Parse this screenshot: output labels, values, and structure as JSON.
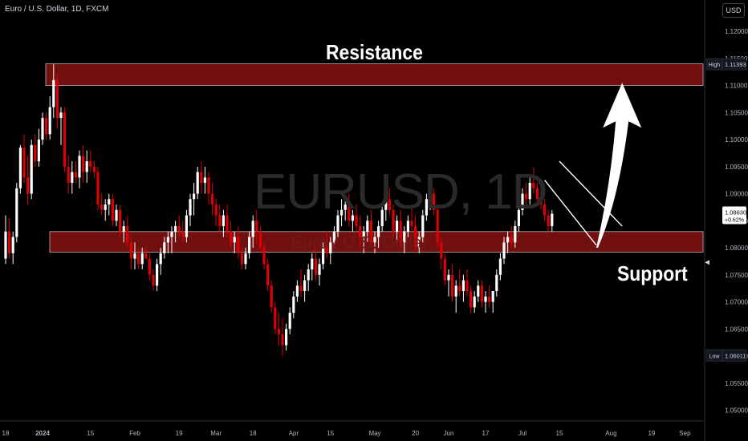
{
  "header": {
    "title": "Euro / U.S. Dollar, 1D, FXCM",
    "currency": "USD"
  },
  "watermark": {
    "symbol": "EURUSD, 1D",
    "name": "Euro / U.S. Dollar"
  },
  "annotations": {
    "resistance": "Resistance",
    "support": "Support"
  },
  "colors": {
    "up": "#ffffff",
    "down": "#e00000",
    "zone": "#8b1414",
    "background": "#000000"
  },
  "chart_data": {
    "type": "candlestick",
    "symbol": "EURUSD",
    "interval": "1D",
    "ylim": [
      1.048,
      1.1258
    ],
    "y_ticks": [
      "1.12000",
      "1.11500",
      "1.11000",
      "1.10500",
      "1.10000",
      "1.09500",
      "1.09000",
      "1.08500",
      "1.08000",
      "1.07500",
      "1.07000",
      "1.06500",
      "1.06000",
      "1.05500",
      "1.05000"
    ],
    "x_ticks": [
      {
        "label": "18",
        "at": 0
      },
      {
        "label": "2024",
        "at": 10
      },
      {
        "label": "15",
        "at": 23
      },
      {
        "label": "Feb",
        "at": 35
      },
      {
        "label": "19",
        "at": 47
      },
      {
        "label": "Mar",
        "at": 57
      },
      {
        "label": "18",
        "at": 67
      },
      {
        "label": "Apr",
        "at": 78
      },
      {
        "label": "15",
        "at": 88
      },
      {
        "label": "May",
        "at": 100
      },
      {
        "label": "20",
        "at": 111
      },
      {
        "label": "Jun",
        "at": 120
      },
      {
        "label": "17",
        "at": 130
      },
      {
        "label": "Jul",
        "at": 140
      },
      {
        "label": "15",
        "at": 150
      },
      {
        "label": "Aug",
        "at": 164
      },
      {
        "label": "19",
        "at": 175
      },
      {
        "label": "Sep",
        "at": 184
      }
    ],
    "price_labels": [
      {
        "tag": "High",
        "value": 1.11393,
        "text": "1.11393",
        "color": "#131722"
      },
      {
        "tag": "",
        "value": 1.0863,
        "text": "1.08630",
        "sub": "+0.62%",
        "color": "#ffffff"
      },
      {
        "tag": "Low",
        "value": 1.06011,
        "text": "1.06011",
        "color": "#131722"
      }
    ],
    "zones": [
      {
        "name": "resistance",
        "from": 1.11,
        "to": 1.114,
        "start": 10,
        "end": 183
      },
      {
        "name": "support",
        "from": 1.0792,
        "to": 1.083,
        "start": 12,
        "end": 183
      }
    ],
    "arrow": {
      "from_index": 160,
      "from_value": 1.08,
      "to_index": 167,
      "to_value": 1.1105
    },
    "channel": {
      "upper": [
        {
          "i": 150,
          "v": 1.096
        },
        {
          "i": 167,
          "v": 1.084
        }
      ],
      "lower": [
        {
          "i": 146,
          "v": 1.0925
        },
        {
          "i": 160,
          "v": 1.0805
        }
      ]
    },
    "candles": [
      [
        1.078,
        1.086,
        1.077,
        1.083
      ],
      [
        1.083,
        1.0855,
        1.078,
        1.079
      ],
      [
        1.079,
        1.083,
        1.077,
        1.082
      ],
      [
        1.082,
        1.092,
        1.081,
        1.091
      ],
      [
        1.091,
        1.099,
        1.09,
        1.0985
      ],
      [
        1.0985,
        1.101,
        1.092,
        1.093
      ],
      [
        1.093,
        1.097,
        1.088,
        1.09
      ],
      [
        1.09,
        1.1,
        1.089,
        1.099
      ],
      [
        1.099,
        1.101,
        1.095,
        1.096
      ],
      [
        1.096,
        1.102,
        1.095,
        1.1
      ],
      [
        1.1,
        1.105,
        1.099,
        1.104
      ],
      [
        1.104,
        1.105,
        1.1,
        1.101
      ],
      [
        1.101,
        1.108,
        1.1,
        1.106
      ],
      [
        1.106,
        1.1139,
        1.104,
        1.111
      ],
      [
        1.111,
        1.112,
        1.102,
        1.104
      ],
      [
        1.104,
        1.106,
        1.099,
        1.105
      ],
      [
        1.105,
        1.106,
        1.094,
        1.095
      ],
      [
        1.095,
        1.097,
        1.09,
        1.092
      ],
      [
        1.092,
        1.096,
        1.09,
        1.094
      ],
      [
        1.094,
        1.096,
        1.092,
        1.093
      ],
      [
        1.093,
        1.098,
        1.091,
        1.097
      ],
      [
        1.097,
        1.099,
        1.092,
        1.094
      ],
      [
        1.094,
        1.098,
        1.092,
        1.096
      ],
      [
        1.096,
        1.098,
        1.094,
        1.095
      ],
      [
        1.095,
        1.096,
        1.093,
        1.094
      ],
      [
        1.094,
        1.095,
        1.087,
        1.088
      ],
      [
        1.088,
        1.09,
        1.086,
        1.087
      ],
      [
        1.087,
        1.089,
        1.085,
        1.088
      ],
      [
        1.088,
        1.09,
        1.086,
        1.089
      ],
      [
        1.089,
        1.09,
        1.084,
        1.085
      ],
      [
        1.085,
        1.088,
        1.084,
        1.087
      ],
      [
        1.087,
        1.088,
        1.082,
        1.083
      ],
      [
        1.083,
        1.085,
        1.081,
        1.084
      ],
      [
        1.084,
        1.086,
        1.08,
        1.081
      ],
      [
        1.081,
        1.082,
        1.076,
        1.078
      ],
      [
        1.078,
        1.081,
        1.076,
        1.079
      ],
      [
        1.079,
        1.08,
        1.076,
        1.077
      ],
      [
        1.077,
        1.08,
        1.076,
        1.079
      ],
      [
        1.079,
        1.08,
        1.078,
        1.078
      ],
      [
        1.078,
        1.079,
        1.074,
        1.075
      ],
      [
        1.075,
        1.076,
        1.072,
        1.073
      ],
      [
        1.073,
        1.078,
        1.072,
        1.077
      ],
      [
        1.077,
        1.08,
        1.075,
        1.079
      ],
      [
        1.079,
        1.082,
        1.078,
        1.081
      ],
      [
        1.081,
        1.083,
        1.079,
        1.082
      ],
      [
        1.082,
        1.084,
        1.079,
        1.083
      ],
      [
        1.083,
        1.085,
        1.081,
        1.084
      ],
      [
        1.084,
        1.086,
        1.082,
        1.083
      ],
      [
        1.083,
        1.085,
        1.081,
        1.082
      ],
      [
        1.082,
        1.087,
        1.081,
        1.086
      ],
      [
        1.086,
        1.09,
        1.084,
        1.089
      ],
      [
        1.089,
        1.092,
        1.086,
        1.09
      ],
      [
        1.09,
        1.095,
        1.089,
        1.094
      ],
      [
        1.094,
        1.096,
        1.09,
        1.092
      ],
      [
        1.092,
        1.095,
        1.09,
        1.093
      ],
      [
        1.093,
        1.094,
        1.088,
        1.09
      ],
      [
        1.09,
        1.092,
        1.086,
        1.088
      ],
      [
        1.088,
        1.089,
        1.084,
        1.086
      ],
      [
        1.086,
        1.088,
        1.083,
        1.084
      ],
      [
        1.084,
        1.087,
        1.082,
        1.086
      ],
      [
        1.086,
        1.088,
        1.082,
        1.083
      ],
      [
        1.083,
        1.085,
        1.08,
        1.081
      ],
      [
        1.081,
        1.083,
        1.079,
        1.082
      ],
      [
        1.082,
        1.084,
        1.078,
        1.079
      ],
      [
        1.079,
        1.08,
        1.076,
        1.077
      ],
      [
        1.077,
        1.08,
        1.076,
        1.079
      ],
      [
        1.079,
        1.083,
        1.078,
        1.082
      ],
      [
        1.082,
        1.086,
        1.08,
        1.085
      ],
      [
        1.085,
        1.087,
        1.081,
        1.083
      ],
      [
        1.083,
        1.084,
        1.079,
        1.08
      ],
      [
        1.08,
        1.081,
        1.076,
        1.077
      ],
      [
        1.077,
        1.078,
        1.072,
        1.073
      ],
      [
        1.073,
        1.074,
        1.068,
        1.069
      ],
      [
        1.069,
        1.07,
        1.064,
        1.065
      ],
      [
        1.065,
        1.068,
        1.062,
        1.064
      ],
      [
        1.064,
        1.067,
        1.0601,
        1.062
      ],
      [
        1.062,
        1.066,
        1.061,
        1.065
      ],
      [
        1.065,
        1.069,
        1.064,
        1.068
      ],
      [
        1.068,
        1.072,
        1.067,
        1.071
      ],
      [
        1.071,
        1.074,
        1.07,
        1.073
      ],
      [
        1.073,
        1.076,
        1.071,
        1.072
      ],
      [
        1.072,
        1.075,
        1.07,
        1.074
      ],
      [
        1.074,
        1.077,
        1.072,
        1.076
      ],
      [
        1.076,
        1.079,
        1.074,
        1.078
      ],
      [
        1.078,
        1.08,
        1.074,
        1.075
      ],
      [
        1.075,
        1.078,
        1.073,
        1.077
      ],
      [
        1.077,
        1.081,
        1.076,
        1.08
      ],
      [
        1.08,
        1.083,
        1.078,
        1.079
      ],
      [
        1.079,
        1.082,
        1.077,
        1.081
      ],
      [
        1.081,
        1.084,
        1.08,
        1.083
      ],
      [
        1.083,
        1.087,
        1.082,
        1.086
      ],
      [
        1.086,
        1.089,
        1.084,
        1.087
      ],
      [
        1.087,
        1.089,
        1.085,
        1.088
      ],
      [
        1.088,
        1.09,
        1.084,
        1.085
      ],
      [
        1.085,
        1.087,
        1.083,
        1.086
      ],
      [
        1.086,
        1.088,
        1.083,
        1.084
      ],
      [
        1.084,
        1.086,
        1.08,
        1.082
      ],
      [
        1.082,
        1.084,
        1.079,
        1.083
      ],
      [
        1.083,
        1.086,
        1.081,
        1.085
      ],
      [
        1.085,
        1.087,
        1.08,
        1.081
      ],
      [
        1.081,
        1.083,
        1.079,
        1.082
      ],
      [
        1.082,
        1.085,
        1.08,
        1.084
      ],
      [
        1.084,
        1.088,
        1.083,
        1.087
      ],
      [
        1.087,
        1.09,
        1.085,
        1.089
      ],
      [
        1.089,
        1.091,
        1.086,
        1.087
      ],
      [
        1.087,
        1.088,
        1.082,
        1.083
      ],
      [
        1.083,
        1.086,
        1.081,
        1.085
      ],
      [
        1.085,
        1.087,
        1.08,
        1.081
      ],
      [
        1.081,
        1.084,
        1.079,
        1.083
      ],
      [
        1.083,
        1.086,
        1.082,
        1.085
      ],
      [
        1.085,
        1.088,
        1.083,
        1.084
      ],
      [
        1.084,
        1.086,
        1.079,
        1.08
      ],
      [
        1.08,
        1.083,
        1.079,
        1.082
      ],
      [
        1.082,
        1.087,
        1.081,
        1.086
      ],
      [
        1.086,
        1.09,
        1.085,
        1.089
      ],
      [
        1.089,
        1.0916,
        1.087,
        1.09
      ],
      [
        1.09,
        1.091,
        1.086,
        1.087
      ],
      [
        1.087,
        1.088,
        1.08,
        1.081
      ],
      [
        1.081,
        1.082,
        1.076,
        1.078
      ],
      [
        1.078,
        1.079,
        1.073,
        1.074
      ],
      [
        1.074,
        1.076,
        1.071,
        1.075
      ],
      [
        1.075,
        1.077,
        1.07,
        1.071
      ],
      [
        1.071,
        1.074,
        1.068,
        1.073
      ],
      [
        1.073,
        1.076,
        1.071,
        1.072
      ],
      [
        1.072,
        1.075,
        1.07,
        1.074
      ],
      [
        1.074,
        1.076,
        1.071,
        1.072
      ],
      [
        1.072,
        1.073,
        1.068,
        1.069
      ],
      [
        1.069,
        1.072,
        1.068,
        1.071
      ],
      [
        1.071,
        1.074,
        1.07,
        1.073
      ],
      [
        1.073,
        1.074,
        1.069,
        1.07
      ],
      [
        1.07,
        1.072,
        1.068,
        1.071
      ],
      [
        1.071,
        1.073,
        1.069,
        1.07
      ],
      [
        1.07,
        1.072,
        1.068,
        1.072
      ],
      [
        1.072,
        1.076,
        1.071,
        1.075
      ],
      [
        1.075,
        1.079,
        1.074,
        1.078
      ],
      [
        1.078,
        1.082,
        1.077,
        1.081
      ],
      [
        1.081,
        1.083,
        1.079,
        1.082
      ],
      [
        1.082,
        1.084,
        1.08,
        1.081
      ],
      [
        1.081,
        1.085,
        1.08,
        1.084
      ],
      [
        1.084,
        1.088,
        1.083,
        1.087
      ],
      [
        1.087,
        1.091,
        1.086,
        1.09
      ],
      [
        1.09,
        1.092,
        1.088,
        1.089
      ],
      [
        1.089,
        1.093,
        1.088,
        1.092
      ],
      [
        1.092,
        1.0948,
        1.09,
        1.091
      ],
      [
        1.091,
        1.092,
        1.088,
        1.089
      ],
      [
        1.089,
        1.09,
        1.087,
        1.088
      ],
      [
        1.088,
        1.089,
        1.085,
        1.086
      ],
      [
        1.086,
        1.087,
        1.083,
        1.084
      ],
      [
        1.084,
        1.087,
        1.083,
        1.0863
      ]
    ]
  }
}
